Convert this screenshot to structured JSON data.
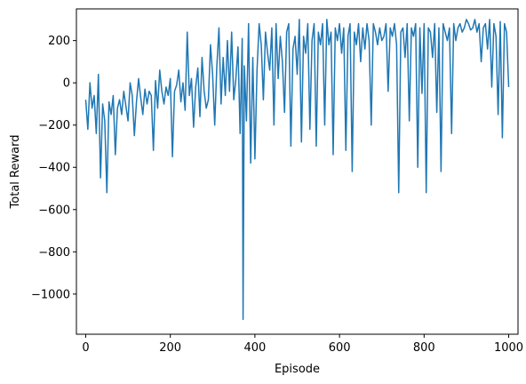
{
  "chart_data": {
    "type": "line",
    "title": "",
    "xlabel": "Episode",
    "ylabel": "Total Reward",
    "xlim": [
      -22,
      1022
    ],
    "ylim": [
      -1190,
      350
    ],
    "xticks": [
      0,
      200,
      400,
      600,
      800,
      1000
    ],
    "yticks": [
      -1000,
      -800,
      -600,
      -400,
      -200,
      0,
      200
    ],
    "grid": false,
    "line_color": "#1f77b4",
    "series": [
      {
        "x": [
          0,
          5,
          10,
          15,
          20,
          25,
          30,
          35,
          40,
          45,
          50,
          55,
          60,
          65,
          70,
          75,
          80,
          85,
          90,
          95,
          100,
          105,
          110,
          115,
          120,
          125,
          130,
          135,
          140,
          145,
          150,
          155,
          160,
          165,
          170,
          175,
          180,
          185,
          190,
          195,
          200,
          205,
          210,
          215,
          220,
          225,
          230,
          235,
          240,
          245,
          250,
          255,
          260,
          265,
          270,
          275,
          280,
          285,
          290,
          295,
          300,
          305,
          310,
          315,
          320,
          325,
          330,
          335,
          340,
          345,
          350,
          355,
          360,
          365,
          370,
          372,
          375,
          380,
          385,
          390,
          395,
          400,
          405,
          410,
          415,
          420,
          425,
          430,
          435,
          440,
          445,
          450,
          455,
          460,
          465,
          470,
          475,
          480,
          485,
          490,
          495,
          500,
          505,
          510,
          515,
          520,
          525,
          530,
          535,
          540,
          545,
          550,
          555,
          560,
          565,
          570,
          575,
          580,
          585,
          590,
          595,
          600,
          605,
          610,
          615,
          620,
          625,
          630,
          635,
          640,
          645,
          650,
          655,
          660,
          665,
          670,
          675,
          680,
          685,
          690,
          695,
          700,
          705,
          710,
          715,
          720,
          725,
          730,
          735,
          740,
          745,
          750,
          755,
          760,
          765,
          770,
          775,
          780,
          785,
          790,
          795,
          800,
          805,
          810,
          815,
          820,
          825,
          830,
          835,
          840,
          845,
          850,
          855,
          860,
          865,
          870,
          875,
          880,
          885,
          890,
          895,
          900,
          905,
          910,
          915,
          920,
          925,
          930,
          935,
          940,
          945,
          950,
          955,
          960,
          965,
          970,
          975,
          980,
          985,
          990,
          995,
          1000
        ],
        "values": [
          -80,
          -220,
          0,
          -120,
          -60,
          -240,
          40,
          -450,
          -100,
          -180,
          -520,
          -90,
          -150,
          -60,
          -340,
          -120,
          -80,
          -150,
          -40,
          -110,
          -180,
          0,
          -60,
          -250,
          -90,
          20,
          -70,
          -150,
          -30,
          -100,
          -40,
          -60,
          -320,
          10,
          -120,
          60,
          -40,
          -100,
          -20,
          -60,
          20,
          -350,
          -40,
          -10,
          60,
          -90,
          0,
          -130,
          240,
          -60,
          20,
          -210,
          -20,
          70,
          -160,
          120,
          -40,
          -120,
          -80,
          180,
          40,
          -200,
          80,
          260,
          -100,
          120,
          -60,
          200,
          -40,
          240,
          -80,
          20,
          170,
          -240,
          210,
          -1120,
          80,
          -180,
          280,
          -380,
          120,
          -360,
          60,
          280,
          180,
          -80,
          240,
          140,
          60,
          260,
          -200,
          280,
          20,
          220,
          100,
          -140,
          240,
          280,
          -300,
          160,
          220,
          40,
          300,
          -280,
          220,
          140,
          280,
          -220,
          200,
          280,
          -300,
          240,
          180,
          280,
          -200,
          300,
          180,
          240,
          -340,
          260,
          200,
          280,
          140,
          260,
          -320,
          220,
          280,
          -420,
          240,
          180,
          280,
          100,
          260,
          160,
          280,
          200,
          -200,
          280,
          240,
          180,
          260,
          200,
          220,
          280,
          -40,
          260,
          220,
          280,
          180,
          -520,
          240,
          260,
          120,
          280,
          -180,
          260,
          220,
          280,
          -400,
          260,
          -50,
          280,
          -520,
          260,
          240,
          120,
          280,
          -140,
          260,
          -420,
          280,
          240,
          200,
          260,
          -240,
          280,
          200,
          260,
          280,
          240,
          260,
          300,
          280,
          250,
          260,
          300,
          240,
          280,
          100,
          260,
          280,
          160,
          300,
          -20,
          280,
          220,
          -150,
          290,
          -260,
          280,
          240,
          -20
        ]
      }
    ]
  }
}
